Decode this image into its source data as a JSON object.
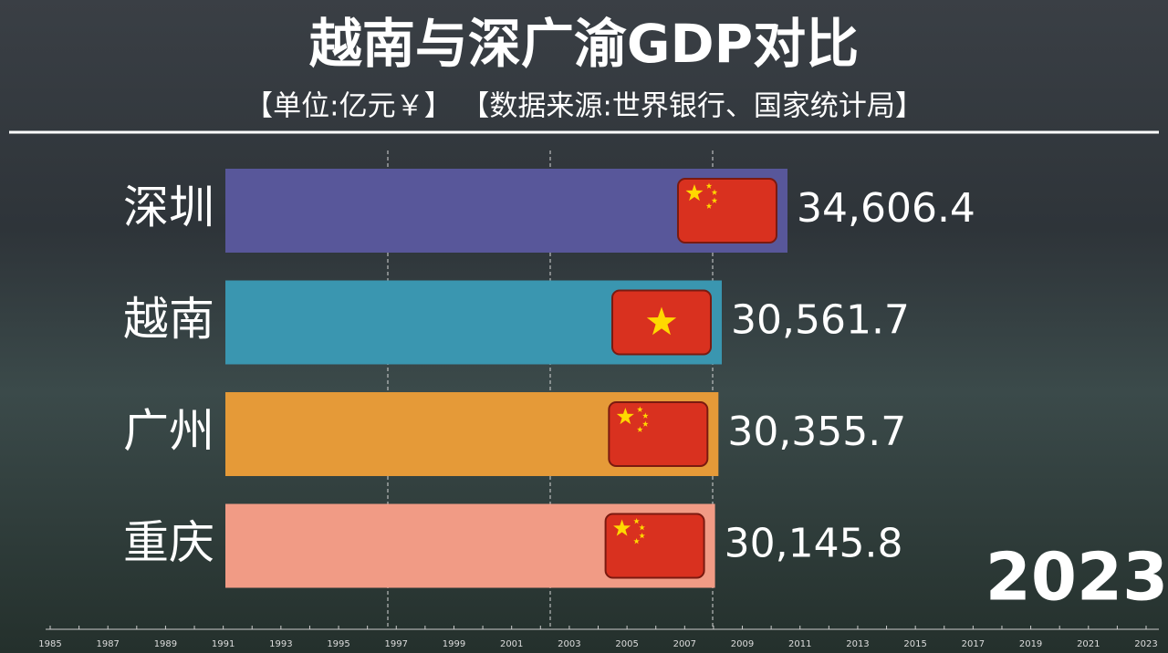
{
  "chart_data": {
    "type": "bar",
    "orientation": "horizontal",
    "title": "越南与深广渝GDP对比",
    "subtitle": "【单位:亿元￥】 【数据来源:世界银行、国家统计局】",
    "categories": [
      "深圳",
      "越南",
      "广州",
      "重庆"
    ],
    "values": [
      34606.4,
      30561.7,
      30355.7,
      30145.8
    ],
    "value_labels": [
      "34,606.4",
      "30,561.7",
      "30,355.7",
      "30,145.8"
    ],
    "colors": [
      "#58579a",
      "#3a96b0",
      "#e59a38",
      "#f19b85"
    ],
    "xlim": [
      0,
      40000
    ],
    "xticks": [
      10000,
      20000,
      30000
    ],
    "grid": true,
    "current_year": "2023",
    "timeline": [
      "1985",
      "1987",
      "1989",
      "1991",
      "1993",
      "1995",
      "1997",
      "1999",
      "2001",
      "2003",
      "2005",
      "2007",
      "2009",
      "2011",
      "2013",
      "2015",
      "2017",
      "2019",
      "2021",
      "2023"
    ]
  }
}
